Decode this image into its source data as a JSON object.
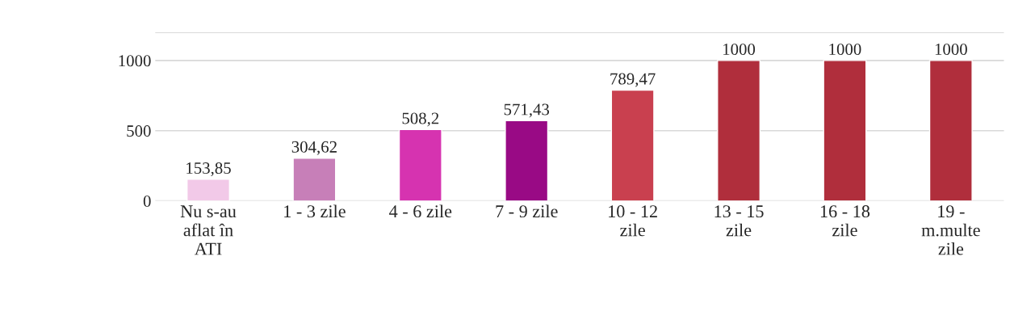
{
  "chart_data": {
    "type": "bar",
    "categories": [
      "Nu s-au\naflat în\nATI",
      "1 - 3 zile",
      "4 - 6 zile",
      "7 - 9 zile",
      "10 - 12\nzile",
      "13 - 15\nzile",
      "16 - 18\nzile",
      "19 -\nm.multe\nzile"
    ],
    "values": [
      153.85,
      304.62,
      508.2,
      571.43,
      789.47,
      1000,
      1000,
      1000
    ],
    "value_labels": [
      "153,85",
      "304,62",
      "508,2",
      "571,43",
      "789,47",
      "1000",
      "1000",
      "1000"
    ],
    "colors": [
      "#f2c9e8",
      "#c77fb8",
      "#d633b0",
      "#990a85",
      "#c9404f",
      "#b02e3c",
      "#b02e3c",
      "#b02e3c"
    ],
    "ylim": [
      0,
      1200
    ],
    "yticks": [
      0,
      500,
      1000,
      {
        "value": 1200,
        "label": null
      }
    ],
    "grid": "y",
    "legend": false
  }
}
